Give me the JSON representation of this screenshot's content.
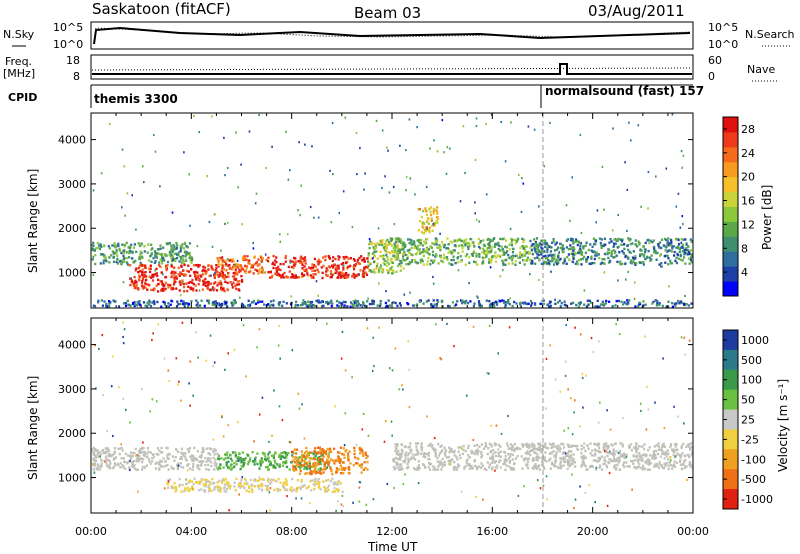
{
  "header": {
    "station": "Saskatoon (fitACF)",
    "beam": "Beam 03",
    "date": "03/Aug/2011"
  },
  "summary_panels": {
    "nsky": {
      "label": "N.Sky",
      "right_label": "N.Search",
      "left_ticks": [
        "10^5",
        "10^0"
      ],
      "right_ticks": [
        "10^5",
        "10^0"
      ]
    },
    "freq": {
      "label_line1": "Freq.",
      "label_line2": "[MHz]",
      "right_label": "Nave",
      "left_ticks": [
        "18",
        "8"
      ],
      "right_ticks": [
        "60",
        "0"
      ]
    },
    "cpid": {
      "label": "CPID",
      "programs": [
        {
          "name": "themis 3300",
          "start_hour": 0.0
        },
        {
          "name": "normalsound (fast) 157",
          "start_hour": 18.1
        }
      ]
    }
  },
  "chart_data": [
    {
      "type": "heatmap",
      "name": "power",
      "ylabel": "Slant Range [km]",
      "xlabel": "Time UT",
      "xlim": [
        0,
        24
      ],
      "ylim": [
        200,
        4600
      ],
      "yticks": [
        1000,
        2000,
        3000,
        4000
      ],
      "colorbar": {
        "label": "Power [dB]",
        "ticks": [
          "4",
          "8",
          "12",
          "16",
          "20",
          "24",
          "28"
        ],
        "range": [
          0,
          30
        ],
        "colors": [
          "#0000ff",
          "#1f3fa8",
          "#2e6e9e",
          "#3d8f6e",
          "#5aa84a",
          "#8cc83c",
          "#c8d43a",
          "#f5c02a",
          "#f89a1e",
          "#f56a1c",
          "#ee3a1a",
          "#e01010"
        ]
      },
      "regions": [
        {
          "t": [
            0.0,
            4.0
          ],
          "r": [
            1200,
            1700
          ],
          "value": 10
        },
        {
          "t": [
            1.5,
            6.0
          ],
          "r": [
            600,
            1200
          ],
          "value": 28
        },
        {
          "t": [
            5.0,
            7.0
          ],
          "r": [
            1000,
            1400
          ],
          "value": 24
        },
        {
          "t": [
            7.0,
            11.0
          ],
          "r": [
            900,
            1400
          ],
          "value": 28
        },
        {
          "t": [
            11.0,
            12.5
          ],
          "r": [
            1000,
            1800
          ],
          "value": 14
        },
        {
          "t": [
            12.0,
            17.5
          ],
          "r": [
            1200,
            1800
          ],
          "value": 12
        },
        {
          "t": [
            13.0,
            13.8
          ],
          "r": [
            1900,
            2500
          ],
          "value": 18
        },
        {
          "t": [
            17.5,
            24.0
          ],
          "r": [
            1200,
            1800
          ],
          "value": 8
        },
        {
          "t": [
            0.0,
            24.0
          ],
          "r": [
            250,
            400
          ],
          "value": 6
        }
      ]
    },
    {
      "type": "heatmap",
      "name": "velocity",
      "ylabel": "Slant Range [km]",
      "xlabel": "Time UT",
      "xlim": [
        0,
        24
      ],
      "ylim": [
        200,
        4600
      ],
      "yticks": [
        1000,
        2000,
        3000,
        4000
      ],
      "xticks": [
        "00:00",
        "04:00",
        "08:00",
        "12:00",
        "16:00",
        "20:00",
        "00:00"
      ],
      "colorbar": {
        "label": "Velocity [m s⁻¹]",
        "ticks": [
          "1000",
          "500",
          "100",
          "50",
          "25",
          "-25",
          "-100",
          "-500",
          "-1000"
        ],
        "colors": [
          "#1e3ca0",
          "#2a7a8a",
          "#3a9a4a",
          "#6ac040",
          "#c8c8c8",
          "#f0d040",
          "#f0a020",
          "#f07018",
          "#e02010"
        ]
      },
      "regions": [
        {
          "t": [
            0.0,
            5.0
          ],
          "r": [
            1200,
            1700
          ],
          "value": "ground scatter"
        },
        {
          "t": [
            5.0,
            9.5
          ],
          "r": [
            1200,
            1600
          ],
          "value": 100
        },
        {
          "t": [
            8.0,
            11.0
          ],
          "r": [
            1100,
            1700
          ],
          "value": -100
        },
        {
          "t": [
            3.0,
            10.0
          ],
          "r": [
            700,
            1000
          ],
          "value": -25
        },
        {
          "t": [
            12.0,
            24.0
          ],
          "r": [
            1200,
            1800
          ],
          "value": "ground scatter"
        }
      ]
    }
  ]
}
